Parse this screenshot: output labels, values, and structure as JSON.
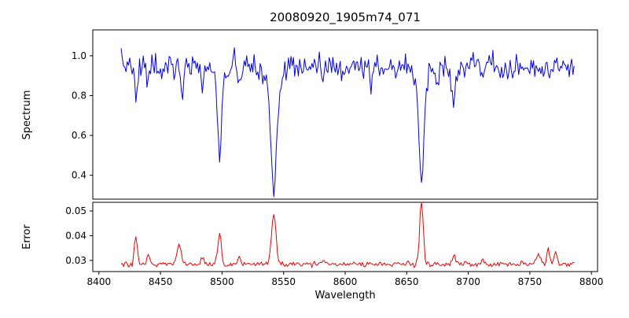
{
  "chart_data": {
    "type": "line",
    "title": "20080920_1905m74_071",
    "xlabel": "Wavelength",
    "xlim": [
      8395,
      8805
    ],
    "x_range": [
      8418,
      8786
    ],
    "x_step": 1.0,
    "x_tick_values": [
      8400,
      8450,
      8500,
      8550,
      8600,
      8650,
      8700,
      8750,
      8800
    ],
    "x_tick_labels": [
      "8400",
      "8450",
      "8500",
      "8550",
      "8600",
      "8650",
      "8700",
      "8750",
      "8800"
    ],
    "grid": false,
    "legend": "none",
    "seed": 7,
    "panels": [
      {
        "name": "spectrum",
        "ylabel": "Spectrum",
        "ylim": [
          0.28,
          1.13
        ],
        "y_tick_values": [
          0.4,
          0.6,
          0.8,
          1.0
        ],
        "y_tick_labels": [
          "0.4",
          "0.6",
          "0.8",
          "1.0"
        ],
        "color": "#0000ee",
        "model": {
          "baseline": 0.95,
          "noise_sigma": 0.032,
          "lines": [
            [
              8430,
              -0.16,
              1.2
            ],
            [
              8440,
              -0.1,
              1.2
            ],
            [
              8451,
              -0.06,
              1.2
            ],
            [
              8468,
              -0.14,
              1.3
            ],
            [
              8484,
              -0.07,
              1.2
            ],
            [
              8498,
              -0.42,
              1.6
            ],
            [
              8498,
              -0.04,
              6.0
            ],
            [
              8514,
              -0.1,
              1.3
            ],
            [
              8542,
              -0.52,
              2.2
            ],
            [
              8542,
              -0.09,
              7.0
            ],
            [
              8582,
              -0.06,
              1.2
            ],
            [
              8598,
              -0.06,
              1.2
            ],
            [
              8621,
              -0.07,
              1.2
            ],
            [
              8662,
              -0.53,
              1.9
            ],
            [
              8662,
              -0.07,
              6.0
            ],
            [
              8674,
              -0.08,
              1.2
            ],
            [
              8688,
              -0.17,
              1.4
            ],
            [
              8712,
              -0.07,
              1.2
            ],
            [
              8736,
              -0.06,
              1.2
            ]
          ],
          "features_note": "Ca II triplet absorption at 8498, 8542, 8662; minima approx 0.47, 0.33, 0.33; continuum approx 0.95"
        }
      },
      {
        "name": "error",
        "ylabel": "Error",
        "ylim": [
          0.0255,
          0.0535
        ],
        "y_tick_values": [
          0.03,
          0.04,
          0.05
        ],
        "y_tick_labels": [
          "0.03",
          "0.04",
          "0.05"
        ],
        "color": "#ee0000",
        "model": {
          "baseline": 0.0285,
          "noise_sigma": 0.0005,
          "lines": [
            [
              8430,
              0.011,
              1.2
            ],
            [
              8440,
              0.004,
              1.2
            ],
            [
              8465,
              0.008,
              1.8
            ],
            [
              8484,
              0.003,
              1.2
            ],
            [
              8498,
              0.012,
              1.4
            ],
            [
              8514,
              0.003,
              1.2
            ],
            [
              8542,
              0.021,
              1.8
            ],
            [
              8582,
              0.002,
              1.2
            ],
            [
              8662,
              0.026,
              1.4
            ],
            [
              8688,
              0.004,
              1.2
            ],
            [
              8712,
              0.002,
              1.2
            ],
            [
              8757,
              0.004,
              1.6
            ],
            [
              8765,
              0.006,
              1.3
            ],
            [
              8771,
              0.005,
              1.2
            ]
          ],
          "features_note": "error floor approx 0.028 with peaks 0.04 at 8430, 0.04 at 8498, 0.05 at 8542, >0.05 at 8662"
        }
      }
    ]
  }
}
